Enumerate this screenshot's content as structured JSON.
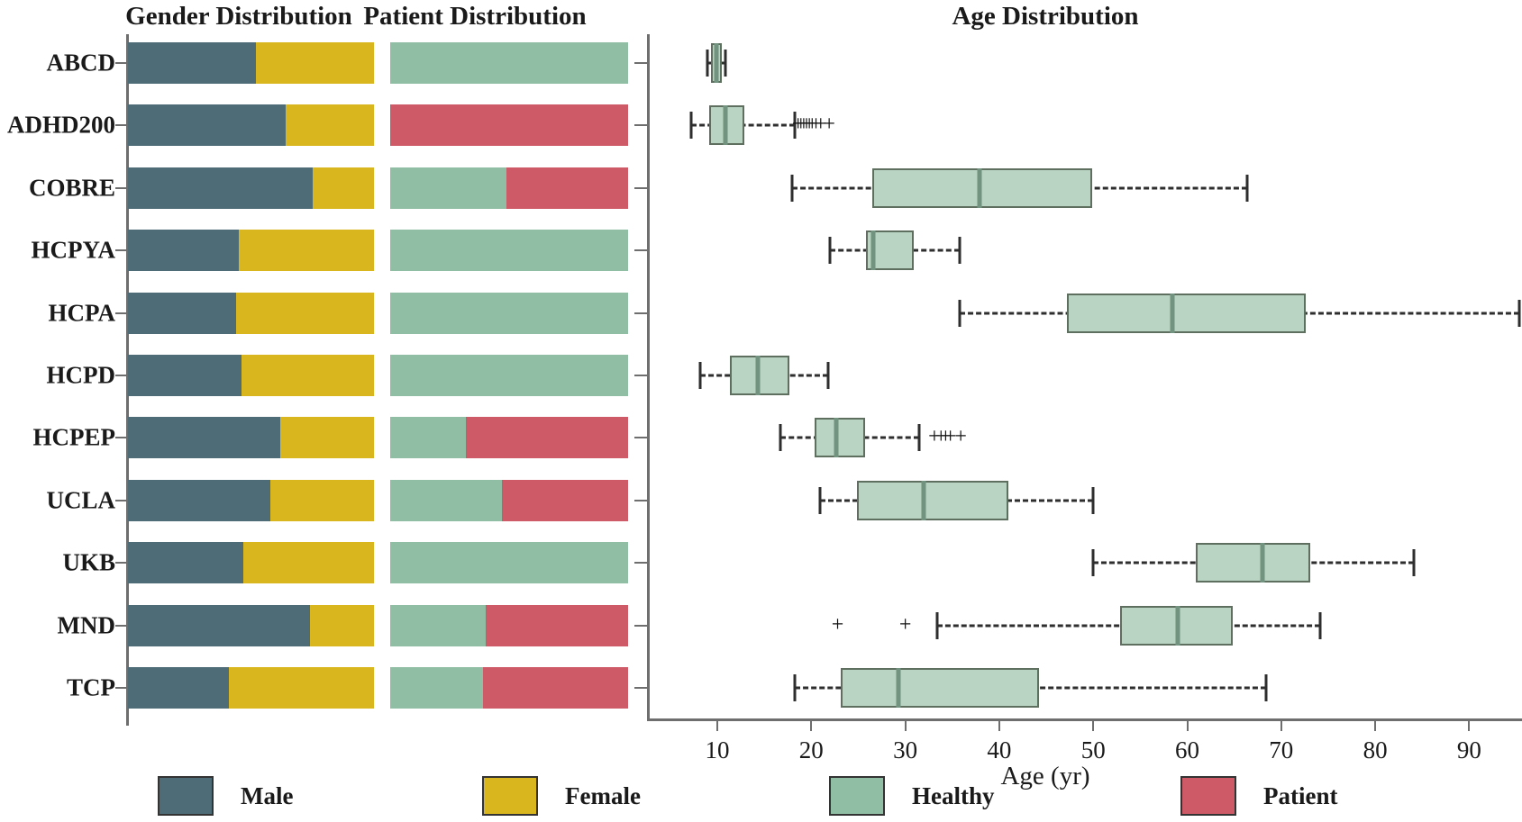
{
  "titles": {
    "gender": "Gender Distribution",
    "patient": "Patient Distribution",
    "age": "Age Distribution"
  },
  "colors": {
    "male": "#4e6b78",
    "female": "#d9b51e",
    "healthy": "#8fbea4",
    "patient": "#cd5a66",
    "box_fill": "#b9d4c2",
    "box_edge": "#5e6f60",
    "median": "#71937f"
  },
  "legend": [
    {
      "label": "Male",
      "color": "#4e6b78"
    },
    {
      "label": "Female",
      "color": "#d9b51e"
    },
    {
      "label": "Healthy",
      "color": "#8fbea4"
    },
    {
      "label": "Patient",
      "color": "#cd5a66"
    }
  ],
  "age_axis": {
    "label": "Age (yr)",
    "ticks": [
      10,
      20,
      30,
      40,
      50,
      60,
      70,
      80,
      90
    ]
  },
  "chart_data": [
    {
      "type": "bar",
      "title": "Gender Distribution",
      "orientation": "horizontal-stacked-normalized",
      "categories": [
        "ABCD",
        "ADHD200",
        "COBRE",
        "HCPYA",
        "HCPA",
        "HCPD",
        "HCPEP",
        "UCLA",
        "UKB",
        "MND",
        "TCP"
      ],
      "series": [
        {
          "name": "Male",
          "values": [
            0.52,
            0.64,
            0.75,
            0.45,
            0.44,
            0.46,
            0.62,
            0.58,
            0.47,
            0.74,
            0.41
          ]
        },
        {
          "name": "Female",
          "values": [
            0.48,
            0.36,
            0.25,
            0.55,
            0.56,
            0.54,
            0.38,
            0.42,
            0.53,
            0.26,
            0.59
          ]
        }
      ]
    },
    {
      "type": "bar",
      "title": "Patient Distribution",
      "orientation": "horizontal-stacked-normalized",
      "categories": [
        "ABCD",
        "ADHD200",
        "COBRE",
        "HCPYA",
        "HCPA",
        "HCPD",
        "HCPEP",
        "UCLA",
        "UKB",
        "MND",
        "TCP"
      ],
      "series": [
        {
          "name": "Healthy",
          "values": [
            1.0,
            0.0,
            0.49,
            1.0,
            1.0,
            1.0,
            0.32,
            0.47,
            1.0,
            0.4,
            0.39
          ]
        },
        {
          "name": "Patient",
          "values": [
            0.0,
            1.0,
            0.51,
            0.0,
            0.0,
            0.0,
            0.68,
            0.53,
            0.0,
            0.6,
            0.61
          ]
        }
      ]
    },
    {
      "type": "boxplot",
      "title": "Age Distribution",
      "xlabel": "Age (yr)",
      "xlim": [
        2.5,
        95.5
      ],
      "stats": [
        {
          "label": "ABCD",
          "whislo": 8.9,
          "q1": 9.3,
          "med": 9.9,
          "q3": 10.5,
          "whishi": 10.9,
          "fliers": []
        },
        {
          "label": "ADHD200",
          "whislo": 7.2,
          "q1": 9.1,
          "med": 10.9,
          "q3": 12.9,
          "whishi": 18.2,
          "fliers": [
            18.6,
            18.9,
            19.2,
            19.5,
            19.8,
            20.1,
            20.5,
            21.0,
            21.9
          ]
        },
        {
          "label": "COBRE",
          "whislo": 18.0,
          "q1": 26.5,
          "med": 37.9,
          "q3": 49.9,
          "whishi": 66.4,
          "fliers": []
        },
        {
          "label": "HCPYA",
          "whislo": 22.0,
          "q1": 25.8,
          "med": 26.6,
          "q3": 30.9,
          "whishi": 35.8,
          "fliers": []
        },
        {
          "label": "HCPA",
          "whislo": 35.8,
          "q1": 47.2,
          "med": 58.4,
          "q3": 72.6,
          "whishi": 95.3,
          "fliers": []
        },
        {
          "label": "HCPD",
          "whislo": 8.2,
          "q1": 11.3,
          "med": 14.3,
          "q3": 17.7,
          "whishi": 21.8,
          "fliers": []
        },
        {
          "label": "HCPEP",
          "whislo": 16.7,
          "q1": 20.4,
          "med": 22.7,
          "q3": 25.7,
          "whishi": 31.5,
          "fliers": [
            33.1,
            33.8,
            34.3,
            34.8,
            35.9
          ]
        },
        {
          "label": "UCLA",
          "whislo": 20.9,
          "q1": 24.9,
          "med": 32.0,
          "q3": 41.0,
          "whishi": 50.0,
          "fliers": []
        },
        {
          "label": "UKB",
          "whislo": 50.0,
          "q1": 60.9,
          "med": 68.0,
          "q3": 73.1,
          "whishi": 84.1,
          "fliers": []
        },
        {
          "label": "MND",
          "whislo": 33.4,
          "q1": 52.9,
          "med": 59.0,
          "q3": 64.8,
          "whishi": 74.1,
          "fliers": [
            22.8,
            30.0
          ]
        },
        {
          "label": "TCP",
          "whislo": 18.2,
          "q1": 23.1,
          "med": 29.3,
          "q3": 44.2,
          "whishi": 68.4,
          "fliers": []
        }
      ]
    }
  ]
}
